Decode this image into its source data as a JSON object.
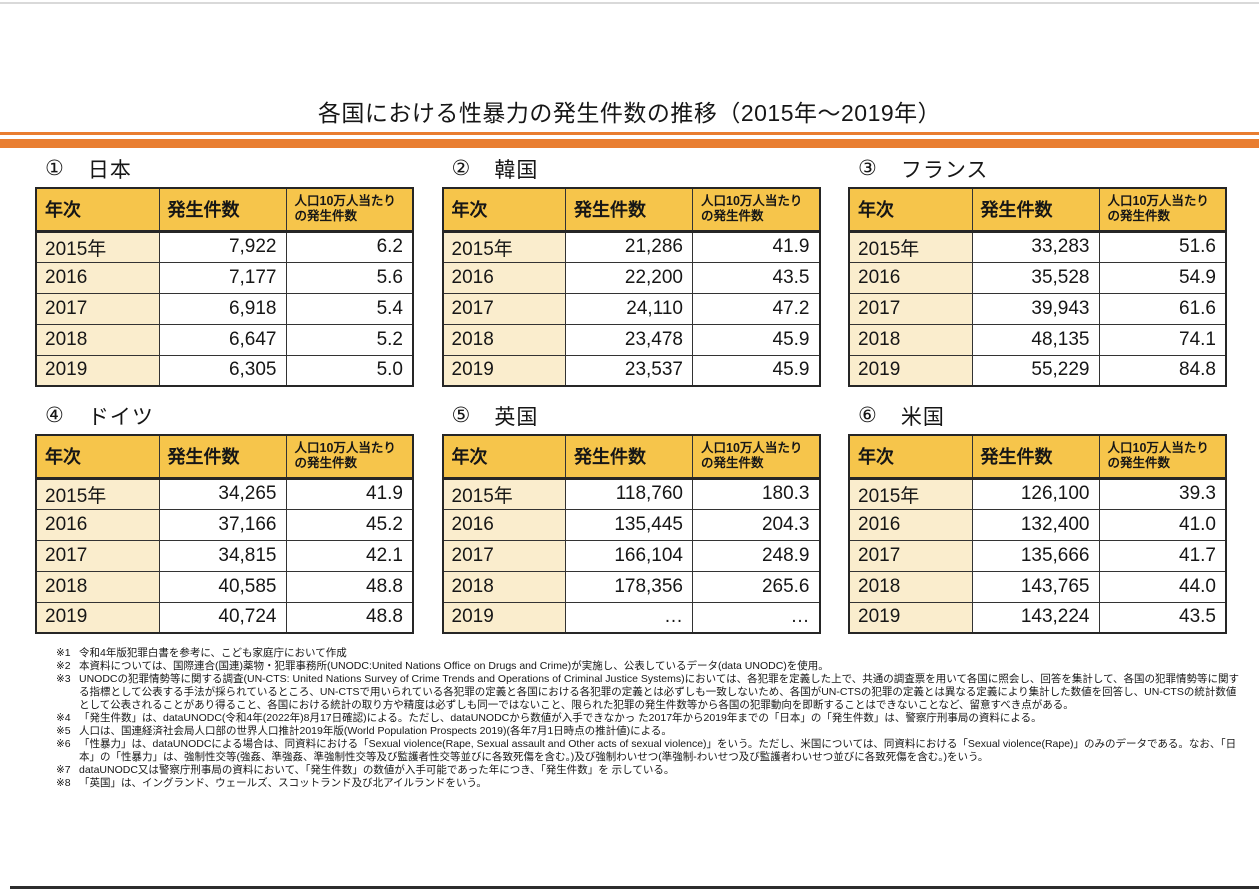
{
  "page": {
    "title": "各国における性暴力の発生件数の推移（2015年～2019年）"
  },
  "table": {
    "headers": {
      "year": "年次",
      "cases": "発生件数",
      "per_100k": "人口10万人当たりの発生件数"
    }
  },
  "countries": [
    {
      "number": "①",
      "name": "日本",
      "rows": [
        [
          "2015年",
          "7,922",
          "6.2"
        ],
        [
          "2016",
          "7,177",
          "5.6"
        ],
        [
          "2017",
          "6,918",
          "5.4"
        ],
        [
          "2018",
          "6,647",
          "5.2"
        ],
        [
          "2019",
          "6,305",
          "5.0"
        ]
      ]
    },
    {
      "number": "②",
      "name": "韓国",
      "rows": [
        [
          "2015年",
          "21,286",
          "41.9"
        ],
        [
          "2016",
          "22,200",
          "43.5"
        ],
        [
          "2017",
          "24,110",
          "47.2"
        ],
        [
          "2018",
          "23,478",
          "45.9"
        ],
        [
          "2019",
          "23,537",
          "45.9"
        ]
      ]
    },
    {
      "number": "③",
      "name": "フランス",
      "rows": [
        [
          "2015年",
          "33,283",
          "51.6"
        ],
        [
          "2016",
          "35,528",
          "54.9"
        ],
        [
          "2017",
          "39,943",
          "61.6"
        ],
        [
          "2018",
          "48,135",
          "74.1"
        ],
        [
          "2019",
          "55,229",
          "84.8"
        ]
      ]
    },
    {
      "number": "④",
      "name": "ドイツ",
      "rows": [
        [
          "2015年",
          "34,265",
          "41.9"
        ],
        [
          "2016",
          "37,166",
          "45.2"
        ],
        [
          "2017",
          "34,815",
          "42.1"
        ],
        [
          "2018",
          "40,585",
          "48.8"
        ],
        [
          "2019",
          "40,724",
          "48.8"
        ]
      ]
    },
    {
      "number": "⑤",
      "name": "英国",
      "rows": [
        [
          "2015年",
          "118,760",
          "180.3"
        ],
        [
          "2016",
          "135,445",
          "204.3"
        ],
        [
          "2017",
          "166,104",
          "248.9"
        ],
        [
          "2018",
          "178,356",
          "265.6"
        ],
        [
          "2019",
          "…",
          "…"
        ]
      ]
    },
    {
      "number": "⑥",
      "name": "米国",
      "rows": [
        [
          "2015年",
          "126,100",
          "39.3"
        ],
        [
          "2016",
          "132,400",
          "41.0"
        ],
        [
          "2017",
          "135,666",
          "41.7"
        ],
        [
          "2018",
          "143,765",
          "44.0"
        ],
        [
          "2019",
          "143,224",
          "43.5"
        ]
      ]
    }
  ],
  "footnotes": [
    {
      "marker": "※1",
      "text": "令和4年版犯罪白書を参考に、こども家庭庁において作成"
    },
    {
      "marker": "※2",
      "text": "本資料については、国際連合(国連)薬物・犯罪事務所(UNODC:United Nations Office on Drugs and Crime)が実施し、公表しているデータ(data UNODC)を使用。"
    },
    {
      "marker": "※3",
      "text": "UNODCの犯罪情勢等に関する調査(UN-CTS: United Nations Survey of Crime Trends and Operations of Criminal Justice Systems)においては、各犯罪を定義した上で、共通の調査票を用いて各国に照会し、回答を集計して、各国の犯罪情勢等に関する指標として公表する手法が採られているところ、UN-CTSで用いられている各犯罪の定義と各国における各犯罪の定義とは必ずしも一致しないため、各国がUN-CTSの犯罪の定義とは異なる定義により集計した数値を回答し、UN-CTSの統計数値として公表されることがあり得ること、各国における統計の取り方や精度は必ずしも同一ではないこと、限られた犯罪の発生件数等から各国の犯罪動向を即断することはできないことなど、留意すべき点がある。"
    },
    {
      "marker": "※4",
      "text": "「発生件数」は、dataUNODC(令和4年(2022年)8月17日確認)による。ただし、dataUNODCから数値が入手できなかっ た2017年から2019年までの「日本」の「発生件数」は、警察庁刑事局の資料による。"
    },
    {
      "marker": "※5",
      "text": "人口は、国連経済社会局人口部の世界人口推計2019年版(World Population Prospects 2019)(各年7月1日時点の推計値)による。"
    },
    {
      "marker": "※6",
      "text": "「性暴力」は、dataUNODCによる場合は、同資料における「Sexual violence(Rape, Sexual assault and Other acts of sexual violence)」をいう。ただし、米国については、同資料における「Sexual violence(Rape)」のみのデータである。なお、「日本」の「性暴力」は、強制性交等(強姦、準強姦、準強制性交等及び監護者性交等並びに各致死傷を含む。)及び強制わいせつ(準強制-わいせつ及び監護者わいせつ並びに各致死傷を含む。)をいう。"
    },
    {
      "marker": "※7",
      "text": "dataUNODC又は警察庁刑事局の資料において、「発生件数」の数値が入手可能であった年につき、「発生件数」を 示している。"
    },
    {
      "marker": "※8",
      "text": "「英国」は、イングランド、ウェールズ、スコットランド及び北アイルランドをいう。"
    }
  ],
  "colors": {
    "accent_orange": "#E97E31",
    "header_gold": "#F6C54B",
    "row_cream": "#FAEDCD",
    "border_dark": "#262626",
    "text_dark": "#161616",
    "edge_gray": "#D9D9D9",
    "bottom_black": "#2D2D2D"
  }
}
